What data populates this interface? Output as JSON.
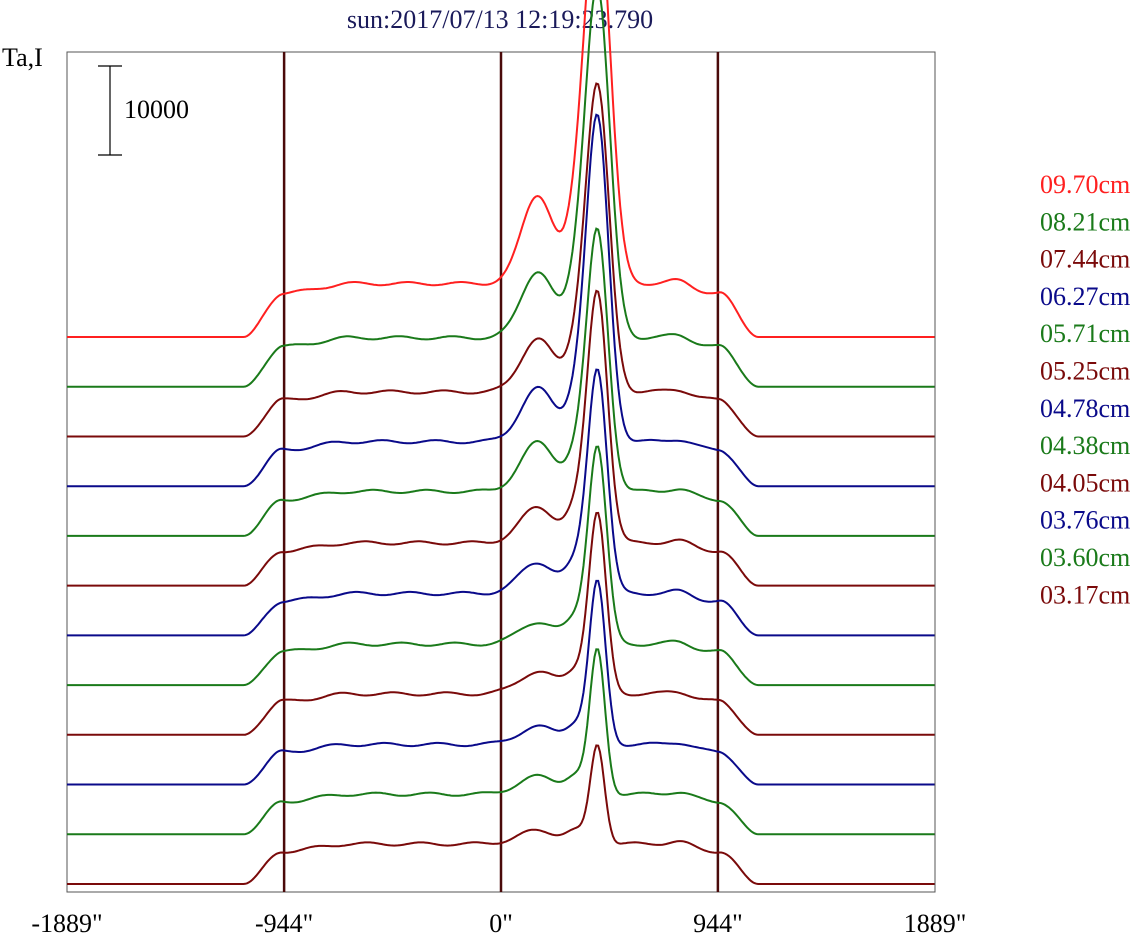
{
  "chart_data": {
    "type": "line",
    "title": "sun:2017/07/13 12:19:23.790",
    "ylabel": "Ta,I",
    "scale_bar_label": "10000",
    "scale_bar_value": 10000,
    "xlim": [
      -1889,
      1889
    ],
    "x_ticks": [
      {
        "value": -1889,
        "label": "-1889\""
      },
      {
        "value": -944,
        "label": "-944\""
      },
      {
        "value": 0,
        "label": "0\""
      },
      {
        "value": 944,
        "label": "944\""
      },
      {
        "value": 1889,
        "label": "1889\""
      }
    ],
    "vertical_lines": [
      -944,
      0,
      944
    ],
    "colors": {
      "red": "#ff2020",
      "green": "#1a7a1a",
      "maroon": "#7a0a0a",
      "blue": "#0a0a8a",
      "title": "#1a1a5a"
    },
    "series": [
      {
        "name": "09.70cm",
        "color": "#ff2020",
        "peak": 43000,
        "minor": 10000,
        "disk": 6000
      },
      {
        "name": "08.21cm",
        "color": "#1a7a1a",
        "peak": 39000,
        "minor": 7500,
        "disk": 5500
      },
      {
        "name": "07.44cm",
        "color": "#7a0a0a",
        "peak": 34000,
        "minor": 6000,
        "disk": 5000
      },
      {
        "name": "06.27cm",
        "color": "#0a0a8a",
        "peak": 36000,
        "minor": 6000,
        "disk": 5000
      },
      {
        "name": "05.71cm",
        "color": "#1a7a1a",
        "peak": 29000,
        "minor": 5500,
        "disk": 5000
      },
      {
        "name": "05.25cm",
        "color": "#7a0a0a",
        "peak": 28000,
        "minor": 4000,
        "disk": 4800
      },
      {
        "name": "04.78cm",
        "color": "#0a0a8a",
        "peak": 25000,
        "minor": 3500,
        "disk": 4700
      },
      {
        "name": "04.38cm",
        "color": "#1a7a1a",
        "peak": 22000,
        "minor": 2500,
        "disk": 4600
      },
      {
        "name": "04.05cm",
        "color": "#7a0a0a",
        "peak": 20000,
        "minor": 2500,
        "disk": 4600
      },
      {
        "name": "03.76cm",
        "color": "#0a0a8a",
        "peak": 18000,
        "minor": 2000,
        "disk": 4500
      },
      {
        "name": "03.60cm",
        "color": "#1a7a1a",
        "peak": 16000,
        "minor": 2000,
        "disk": 4500
      },
      {
        "name": "03.17cm",
        "color": "#7a0a0a",
        "peak": 11000,
        "minor": 1500,
        "disk": 4500
      }
    ]
  }
}
